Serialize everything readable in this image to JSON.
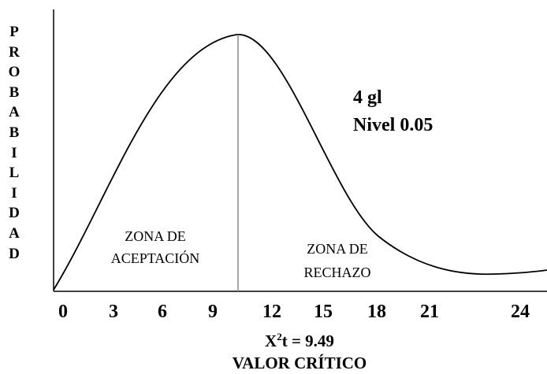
{
  "y_label": "PROBABILIDAD",
  "x_ticks": [
    "0",
    "3",
    "6",
    "9",
    "12",
    "15",
    "18",
    "21",
    "24"
  ],
  "info": {
    "df": "4 gl",
    "level": "Nivel 0.05"
  },
  "zones": {
    "accept": [
      "ZONA DE",
      "ACEPTACIÓN"
    ],
    "reject": [
      "ZONA DE",
      "RECHAZO"
    ]
  },
  "critical": {
    "symbol": "X",
    "sup": "2",
    "rest": "t = 9.49",
    "caption": "VALOR CRÍTICO"
  }
}
